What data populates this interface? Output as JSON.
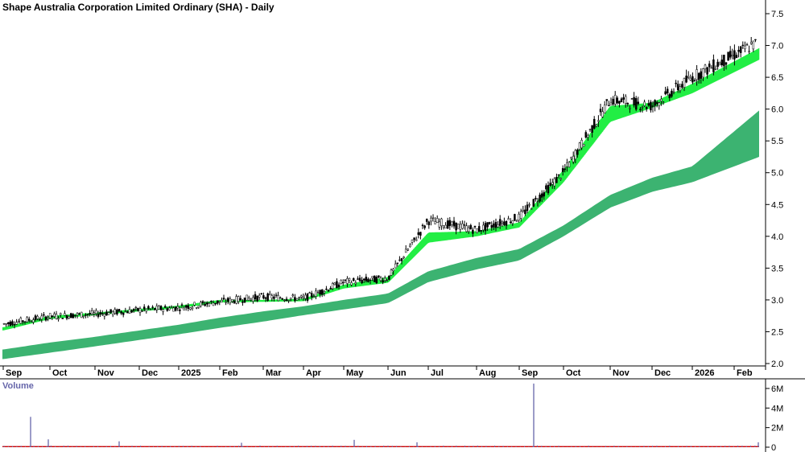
{
  "chart_data": [
    {
      "type": "candlestick",
      "title": "Shape Australia Corporation Limited Ordinary (SHA) - Daily",
      "ylim": [
        1.9,
        7.6
      ],
      "yticks": [
        "2.0",
        "2.5",
        "3.0",
        "3.5",
        "4.0",
        "4.5",
        "5.0",
        "5.5",
        "6.0",
        "6.5",
        "7.0",
        "7.5"
      ],
      "ytick_values": [
        2.0,
        2.5,
        3.0,
        3.5,
        4.0,
        4.5,
        5.0,
        5.5,
        6.0,
        6.5,
        7.0,
        7.5
      ],
      "months": [
        "Sep",
        "Oct",
        "Nov",
        "Dec",
        "2025",
        "Feb",
        "Mar",
        "Apr",
        "May",
        "Jun",
        "Jul",
        "Aug",
        "Sep",
        "Oct",
        "Nov",
        "Dec",
        "2026",
        "Feb"
      ],
      "grid": false,
      "colors": {
        "short_band_up": "#22ee44",
        "short_band_down": "#ee5511",
        "long_band": "#3cb371",
        "candle": "#000000"
      },
      "price_path_by_month": [
        2.62,
        2.74,
        2.78,
        2.84,
        2.88,
        2.97,
        3.05,
        3.02,
        3.28,
        3.34,
        4.25,
        4.1,
        4.3,
        5.0,
        6.15,
        6.05,
        6.5,
        6.85
      ],
      "short_band_by_month": [
        [
          2.52,
          2.57
        ],
        [
          2.7,
          2.75
        ],
        [
          2.76,
          2.8
        ],
        [
          2.82,
          2.86
        ],
        [
          2.87,
          2.91
        ],
        [
          2.96,
          3.0
        ],
        [
          2.97,
          3.0
        ],
        [
          2.98,
          3.02
        ],
        [
          3.18,
          3.24
        ],
        [
          3.27,
          3.36
        ],
        [
          3.9,
          4.06
        ],
        [
          4.0,
          4.08
        ],
        [
          4.14,
          4.22
        ],
        [
          4.85,
          5.05
        ],
        [
          5.8,
          6.05
        ],
        [
          6.02,
          6.1
        ],
        [
          6.25,
          6.4
        ],
        [
          6.58,
          6.75
        ]
      ],
      "long_band_by_month": [
        [
          2.07,
          2.22
        ],
        [
          2.17,
          2.33
        ],
        [
          2.27,
          2.42
        ],
        [
          2.37,
          2.52
        ],
        [
          2.46,
          2.61
        ],
        [
          2.56,
          2.72
        ],
        [
          2.66,
          2.82
        ],
        [
          2.76,
          2.9
        ],
        [
          2.85,
          3.0
        ],
        [
          2.95,
          3.1
        ],
        [
          3.28,
          3.45
        ],
        [
          3.48,
          3.66
        ],
        [
          3.62,
          3.8
        ],
        [
          4.0,
          4.17
        ],
        [
          4.45,
          4.65
        ],
        [
          4.7,
          4.92
        ],
        [
          4.85,
          5.1
        ],
        [
          5.1,
          5.65
        ]
      ]
    },
    {
      "type": "bar",
      "title": "Volume",
      "ylim": [
        0,
        6600000
      ],
      "yticks": [
        "0",
        "2M",
        "4M",
        "6M"
      ],
      "ytick_values": [
        0,
        2000000,
        4000000,
        6000000
      ],
      "colors": {
        "bars": "#6666aa",
        "baseline": "#cc0000",
        "title": "#6666aa"
      },
      "baseline_volume": 60000,
      "spikes": [
        {
          "month": "Sep",
          "volume": 3100000
        },
        {
          "month": "Oct",
          "volume": 800000
        },
        {
          "month": "Nov",
          "volume": 600000
        },
        {
          "month": "Feb",
          "volume": 450000
        },
        {
          "month": "Apr",
          "volume": 750000
        },
        {
          "month": "Jun",
          "volume": 500000
        },
        {
          "month": "Sep",
          "volume": 6500000
        },
        {
          "month": "Feb",
          "volume": 500000
        }
      ]
    }
  ]
}
